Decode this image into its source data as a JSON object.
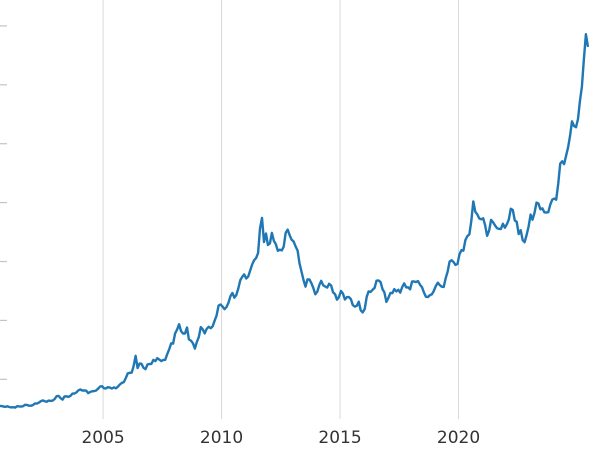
{
  "chart_data": {
    "type": "line",
    "title": "",
    "xlabel": "",
    "ylabel": "",
    "xlim": [
      2000.65,
      2025.97
    ],
    "ylim": [
      -100,
      3720
    ],
    "xticks": [
      2005,
      2010,
      2015,
      2020
    ],
    "ytick_marks": [
      500,
      1000,
      1500,
      2000,
      2500,
      3000,
      3500
    ],
    "grid": {
      "vertical": true,
      "horizontal": false,
      "color": "#d9d9d9"
    },
    "line_color": "#1f77b4",
    "legend": null,
    "series": [
      {
        "name": "series-1",
        "start": 2000.54,
        "interval_years": 0.0833333,
        "values": [
          281,
          274,
          273,
          270,
          266,
          271,
          265,
          262,
          263,
          260,
          272,
          270,
          268,
          272,
          284,
          283,
          276,
          276,
          281,
          295,
          294,
          302,
          314,
          321,
          313,
          310,
          319,
          317,
          319,
          333,
          357,
          359,
          340,
          328,
          355,
          356,
          351,
          360,
          379,
          379,
          389,
          407,
          414,
          405,
          406,
          403,
          383,
          392,
          398,
          400,
          405,
          420,
          439,
          442,
          424,
          423,
          434,
          429,
          422,
          431,
          424,
          437,
          456,
          470,
          476,
          510,
          550,
          555,
          557,
          611,
          700,
          596,
          634,
          632,
          598,
          586,
          627,
          630,
          631,
          665,
          655,
          679,
          667,
          655,
          665,
          665,
          713,
          755,
          806,
          803,
          890,
          922,
          968,
          910,
          889,
          889,
          940,
          839,
          829,
          807,
          761,
          816,
          858,
          943,
          924,
          890,
          929,
          946,
          934,
          949,
          997,
          1043,
          1127,
          1135,
          1118,
          1095,
          1113,
          1149,
          1205,
          1233,
          1193,
          1216,
          1271,
          1342,
          1370,
          1391,
          1356,
          1373,
          1424,
          1474,
          1511,
          1529,
          1573,
          1780,
          1870,
          1666,
          1738,
          1640,
          1654,
          1743,
          1674,
          1649,
          1591,
          1600,
          1594,
          1626,
          1745,
          1770,
          1722,
          1685,
          1671,
          1628,
          1593,
          1485,
          1414,
          1343,
          1286,
          1347,
          1348,
          1316,
          1276,
          1222,
          1244,
          1300,
          1336,
          1298,
          1288,
          1279,
          1311,
          1296,
          1238,
          1222,
          1176,
          1200,
          1250,
          1227,
          1178,
          1198,
          1198,
          1181,
          1130,
          1117,
          1124,
          1159,
          1086,
          1068,
          1097,
          1200,
          1246,
          1242,
          1260,
          1276,
          1337,
          1340,
          1327,
          1266,
          1238,
          1157,
          1192,
          1234,
          1231,
          1266,
          1246,
          1260,
          1236,
          1283,
          1314,
          1280,
          1281,
          1264,
          1331,
          1330,
          1325,
          1334,
          1303,
          1282,
          1238,
          1201,
          1198,
          1215,
          1221,
          1250,
          1292,
          1320,
          1301,
          1286,
          1284,
          1359,
          1413,
          1499,
          1511,
          1495,
          1471,
          1480,
          1561,
          1597,
          1592,
          1683,
          1716,
          1732,
          1843,
          2010,
          1922,
          1900,
          1866,
          1858,
          1867,
          1808,
          1718,
          1762,
          1853,
          1835,
          1807,
          1784,
          1777,
          1777,
          1820,
          1787,
          1817,
          1856,
          1948,
          1937,
          1848,
          1837,
          1733,
          1766,
          1681,
          1664,
          1725,
          1797,
          1898,
          1855,
          1913,
          2000,
          1992,
          1943,
          1951,
          1918,
          1916,
          1919,
          1984,
          2026,
          2034,
          2025,
          2158,
          2330,
          2351,
          2327,
          2398,
          2470,
          2570,
          2690,
          2650,
          2640,
          2710,
          2860,
          2985,
          3220,
          3430,
          3330
        ]
      }
    ]
  }
}
